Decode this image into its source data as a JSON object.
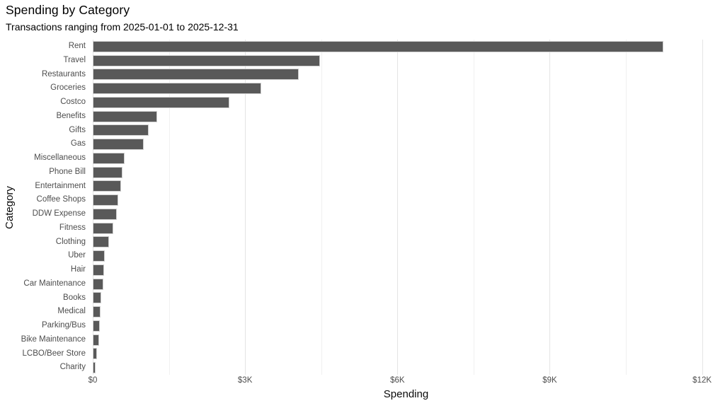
{
  "chart_data": {
    "type": "bar",
    "orientation": "horizontal",
    "title": "Spending by Category",
    "subtitle": "Transactions ranging from 2025-01-01 to 2025-12-31",
    "xlabel": "Spending",
    "ylabel": "Category",
    "categories": [
      "Rent",
      "Travel",
      "Restaurants",
      "Groceries",
      "Costco",
      "Benefits",
      "Gifts",
      "Gas",
      "Miscellaneous",
      "Phone Bill",
      "Entertainment",
      "Coffee Shops",
      "DDW Expense",
      "Fitness",
      "Clothing",
      "Uber",
      "Hair",
      "Car Maintenance",
      "Books",
      "Medical",
      "Parking/Bus",
      "Bike Maintenance",
      "LCBO/Beer Store",
      "Charity"
    ],
    "values": [
      11240,
      4480,
      4060,
      3320,
      2690,
      1270,
      1100,
      1010,
      625,
      585,
      555,
      500,
      470,
      400,
      325,
      240,
      230,
      215,
      170,
      160,
      140,
      130,
      90,
      50
    ],
    "xlim": [
      0,
      12340
    ],
    "x_ticks": [
      {
        "value": 0,
        "label": "$0"
      },
      {
        "value": 3000,
        "label": "$3K"
      },
      {
        "value": 6000,
        "label": "$6K"
      },
      {
        "value": 9000,
        "label": "$9K"
      },
      {
        "value": 12000,
        "label": "$12K"
      }
    ],
    "x_minor_gridlines": [
      1500,
      4500,
      7500,
      10500
    ],
    "grid": "vertical-only",
    "legend_position": "none",
    "sort": "descending",
    "colors": {
      "bar_fill": "#595959",
      "bar_border": "#d0d0d0",
      "grid_major": "#e4e4e4",
      "grid_minor": "#f0f0f0",
      "axis_text": "#4d4d4d",
      "title_text": "#000000",
      "background": "#ffffff"
    }
  }
}
